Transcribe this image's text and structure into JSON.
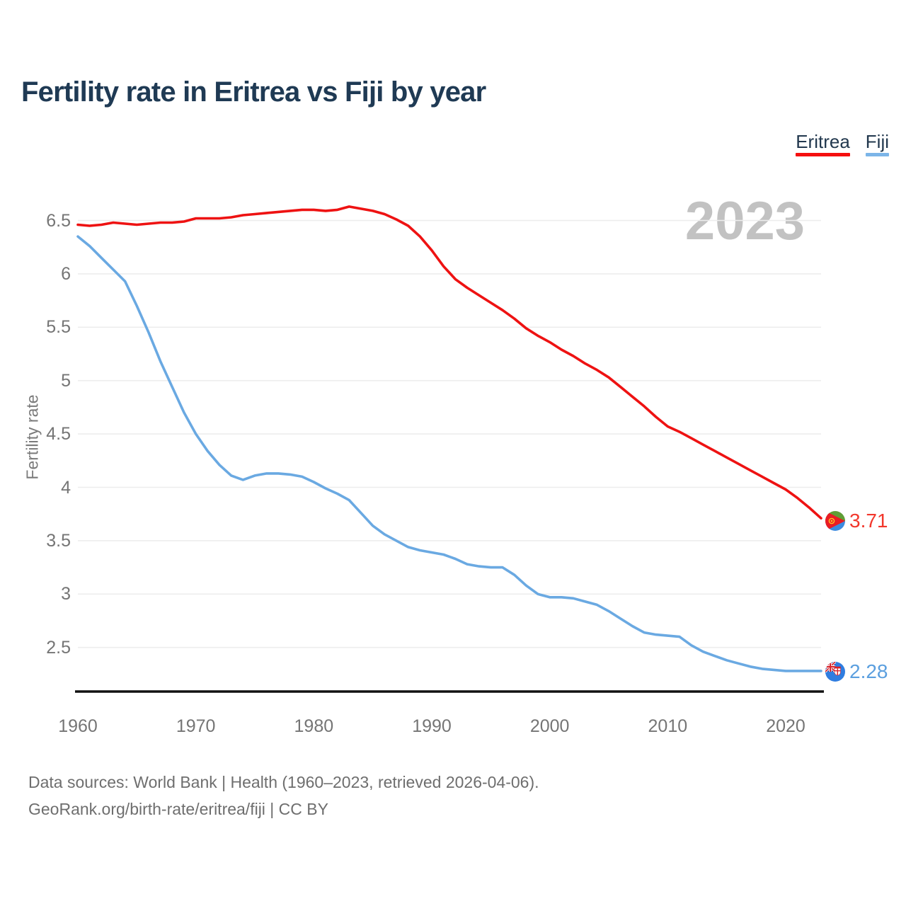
{
  "header": {
    "title": "Fertility rate in Eritrea vs Fiji by year"
  },
  "legend": {
    "items": [
      {
        "label": "Eritrea",
        "color": "#f50f0f"
      },
      {
        "label": "Fiji",
        "color": "#7cb5e8"
      }
    ]
  },
  "watermark": "2023",
  "axis": {
    "ylabel": "Fertility rate"
  },
  "endpoints": [
    {
      "series": "Eritrea",
      "value": "3.71",
      "flag": "eritrea-flag-icon",
      "color": "#f2372c"
    },
    {
      "series": "Fiji",
      "value": "2.28",
      "flag": "fiji-flag-icon",
      "color": "#5b9fdf"
    }
  ],
  "footer": {
    "line1": "Data sources: World Bank | Health (1960–2023, retrieved 2026-04-06).",
    "line2": "GeoRank.org/birth-rate/eritrea/fiji | CC BY"
  },
  "chart_data": {
    "type": "line",
    "title": "Fertility rate in Eritrea vs Fiji by year",
    "xlabel": "",
    "ylabel": "Fertility rate",
    "xlim": [
      1960,
      2023
    ],
    "ylim": [
      2.1,
      6.75
    ],
    "grid": "horizontal",
    "legend_position": "top-right",
    "x_ticks": [
      1960,
      1970,
      1980,
      1990,
      2000,
      2010,
      2020
    ],
    "y_ticks": [
      6.5,
      6,
      5.5,
      5,
      4.5,
      4,
      3.5,
      3,
      2.5
    ],
    "y_tick_labels": [
      "6.5",
      "6",
      "5.5",
      "5",
      "4.5",
      "4",
      "3.5",
      "3",
      "2.5"
    ],
    "years": [
      1960,
      1961,
      1962,
      1963,
      1964,
      1965,
      1966,
      1967,
      1968,
      1969,
      1970,
      1971,
      1972,
      1973,
      1974,
      1975,
      1976,
      1977,
      1978,
      1979,
      1980,
      1981,
      1982,
      1983,
      1984,
      1985,
      1986,
      1987,
      1988,
      1989,
      1990,
      1991,
      1992,
      1993,
      1994,
      1995,
      1996,
      1997,
      1998,
      1999,
      2000,
      2001,
      2002,
      2003,
      2004,
      2005,
      2006,
      2007,
      2008,
      2009,
      2010,
      2011,
      2012,
      2013,
      2014,
      2015,
      2016,
      2017,
      2018,
      2019,
      2020,
      2021,
      2022,
      2023
    ],
    "series": [
      {
        "name": "Eritrea",
        "color": "#ee1212",
        "end_label": "3.71",
        "values": [
          6.46,
          6.45,
          6.46,
          6.48,
          6.47,
          6.46,
          6.47,
          6.48,
          6.48,
          6.49,
          6.52,
          6.52,
          6.52,
          6.53,
          6.55,
          6.56,
          6.57,
          6.58,
          6.59,
          6.6,
          6.6,
          6.59,
          6.6,
          6.63,
          6.61,
          6.59,
          6.56,
          6.51,
          6.45,
          6.35,
          6.22,
          6.07,
          5.95,
          5.87,
          5.8,
          5.73,
          5.66,
          5.58,
          5.49,
          5.42,
          5.36,
          5.29,
          5.23,
          5.16,
          5.1,
          5.03,
          4.94,
          4.85,
          4.76,
          4.66,
          4.57,
          4.52,
          4.46,
          4.4,
          4.34,
          4.28,
          4.22,
          4.16,
          4.1,
          4.04,
          3.98,
          3.9,
          3.81,
          3.71
        ]
      },
      {
        "name": "Fiji",
        "color": "#6aa9e2",
        "end_label": "2.28",
        "values": [
          6.35,
          6.26,
          6.15,
          6.04,
          5.93,
          5.7,
          5.45,
          5.18,
          4.94,
          4.7,
          4.5,
          4.34,
          4.21,
          4.11,
          4.07,
          4.11,
          4.13,
          4.13,
          4.12,
          4.1,
          4.05,
          3.99,
          3.94,
          3.88,
          3.76,
          3.64,
          3.56,
          3.5,
          3.44,
          3.41,
          3.39,
          3.37,
          3.33,
          3.28,
          3.26,
          3.25,
          3.25,
          3.18,
          3.08,
          3.0,
          2.97,
          2.97,
          2.96,
          2.93,
          2.9,
          2.84,
          2.77,
          2.7,
          2.64,
          2.62,
          2.61,
          2.6,
          2.52,
          2.46,
          2.42,
          2.38,
          2.35,
          2.32,
          2.3,
          2.29,
          2.28,
          2.28,
          2.28,
          2.28
        ]
      }
    ]
  }
}
